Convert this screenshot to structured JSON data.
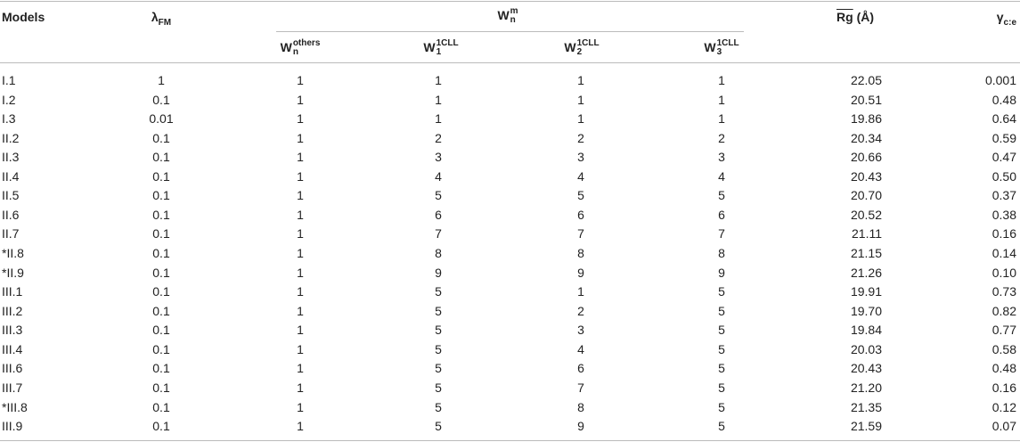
{
  "header": {
    "models": "Models",
    "lambda": {
      "symbol": "λ",
      "sub": "FM"
    },
    "w_group": {
      "symbol": "W",
      "sub": "n",
      "sup": "m"
    },
    "w_cols": [
      {
        "symbol": "W",
        "sub": "n",
        "sup": "others"
      },
      {
        "symbol": "W",
        "sub": "1",
        "sup": "1CLL"
      },
      {
        "symbol": "W",
        "sub": "2",
        "sup": "1CLL"
      },
      {
        "symbol": "W",
        "sub": "3",
        "sup": "1CLL"
      }
    ],
    "rg": {
      "symbol": "Rg",
      "unit": "(Å)"
    },
    "gamma": {
      "symbol": "γ",
      "sub": "c:e"
    }
  },
  "table": {
    "rows": [
      [
        "I.1",
        "1",
        "1",
        "1",
        "1",
        "1",
        "22.05",
        "0.001"
      ],
      [
        "I.2",
        "0.1",
        "1",
        "1",
        "1",
        "1",
        "20.51",
        "0.48"
      ],
      [
        "I.3",
        "0.01",
        "1",
        "1",
        "1",
        "1",
        "19.86",
        "0.64"
      ],
      [
        "II.2",
        "0.1",
        "1",
        "2",
        "2",
        "2",
        "20.34",
        "0.59"
      ],
      [
        "II.3",
        "0.1",
        "1",
        "3",
        "3",
        "3",
        "20.66",
        "0.47"
      ],
      [
        "II.4",
        "0.1",
        "1",
        "4",
        "4",
        "4",
        "20.43",
        "0.50"
      ],
      [
        "II.5",
        "0.1",
        "1",
        "5",
        "5",
        "5",
        "20.70",
        "0.37"
      ],
      [
        "II.6",
        "0.1",
        "1",
        "6",
        "6",
        "6",
        "20.52",
        "0.38"
      ],
      [
        "II.7",
        "0.1",
        "1",
        "7",
        "7",
        "7",
        "21.11",
        "0.16"
      ],
      [
        "*II.8",
        "0.1",
        "1",
        "8",
        "8",
        "8",
        "21.15",
        "0.14"
      ],
      [
        "*II.9",
        "0.1",
        "1",
        "9",
        "9",
        "9",
        "21.26",
        "0.10"
      ],
      [
        "III.1",
        "0.1",
        "1",
        "5",
        "1",
        "5",
        "19.91",
        "0.73"
      ],
      [
        "III.2",
        "0.1",
        "1",
        "5",
        "2",
        "5",
        "19.70",
        "0.82"
      ],
      [
        "III.3",
        "0.1",
        "1",
        "5",
        "3",
        "5",
        "19.84",
        "0.77"
      ],
      [
        "III.4",
        "0.1",
        "1",
        "5",
        "4",
        "5",
        "20.03",
        "0.58"
      ],
      [
        "III.6",
        "0.1",
        "1",
        "5",
        "6",
        "5",
        "20.43",
        "0.48"
      ],
      [
        "III.7",
        "0.1",
        "1",
        "5",
        "7",
        "5",
        "21.20",
        "0.16"
      ],
      [
        "*III.8",
        "0.1",
        "1",
        "5",
        "8",
        "5",
        "21.35",
        "0.12"
      ],
      [
        "III.9",
        "0.1",
        "1",
        "5",
        "9",
        "5",
        "21.59",
        "0.07"
      ]
    ]
  }
}
